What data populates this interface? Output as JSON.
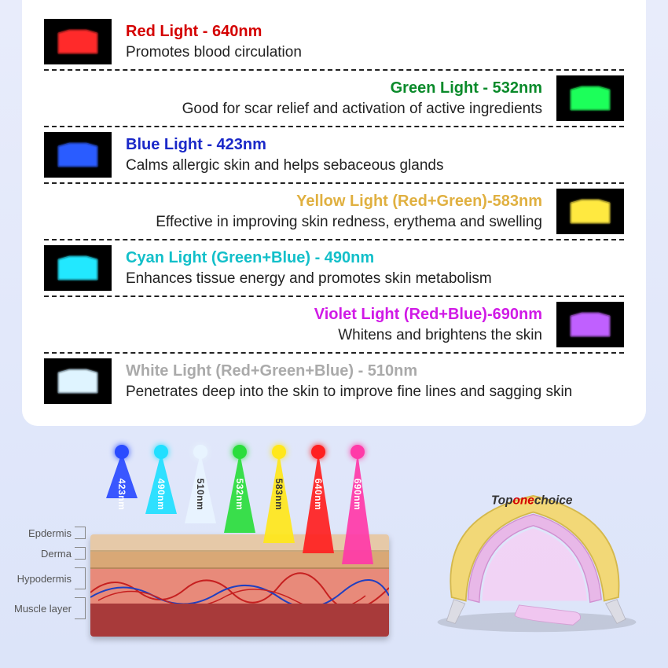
{
  "lights": [
    {
      "title": "Red Light - 640nm",
      "desc": "Promotes blood circulation",
      "align": "left",
      "title_color": "#d40000",
      "led_fill": "#ff2a2a",
      "led_glow": "#ff2a2a",
      "led_bg": "#000"
    },
    {
      "title": "Green Light - 532nm",
      "desc": "Good for scar relief and activation of active ingredients",
      "align": "right",
      "title_color": "#0a8a2a",
      "led_fill": "#1eff5a",
      "led_glow": "#1eff5a",
      "led_bg": "#000"
    },
    {
      "title": "Blue Light - 423nm",
      "desc": "Calms allergic skin and helps sebaceous glands",
      "align": "left",
      "title_color": "#1a28c8",
      "led_fill": "#2a5cff",
      "led_glow": "#2a5cff",
      "led_bg": "#000"
    },
    {
      "title": "Yellow Light (Red+Green)-583nm",
      "desc": "Effective in improving skin redness, erythema and swelling",
      "align": "right",
      "title_color": "#e0b040",
      "led_fill": "#ffe940",
      "led_glow": "#ffe940",
      "led_bg": "#000"
    },
    {
      "title": "Cyan Light (Green+Blue) - 490nm",
      "desc": "Enhances tissue energy and promotes skin metabolism",
      "align": "left",
      "title_color": "#12bfc9",
      "led_fill": "#20e8ff",
      "led_glow": "#20e8ff",
      "led_bg": "#000"
    },
    {
      "title": "Violet Light (Red+Blue)-690nm",
      "desc": "Whitens and brightens the skin",
      "align": "right",
      "title_color": "#d01ae6",
      "led_fill": "#c060ff",
      "led_glow": "#d060ff",
      "led_bg": "#000"
    },
    {
      "title": "White Light (Red+Green+Blue) - 510nm",
      "desc": "Penetrates deep into the skin to improve fine lines and sagging skin",
      "align": "left",
      "title_color": "#aaaaaa",
      "led_fill": "#dff4ff",
      "led_glow": "#a0d8ff",
      "led_bg": "#000"
    }
  ],
  "skin_labels": [
    "Epdermis",
    "Derma",
    "Hypodermis",
    "Muscle layer"
  ],
  "beams": [
    {
      "color": "#2a4bff",
      "nm": "423nm",
      "height": 58,
      "dark": false
    },
    {
      "color": "#20dfff",
      "nm": "490nm",
      "height": 78,
      "dark": false
    },
    {
      "color": "#e8f4ff",
      "nm": "510nm",
      "height": 90,
      "dark": true
    },
    {
      "color": "#2add3c",
      "nm": "532nm",
      "height": 102,
      "dark": false
    },
    {
      "color": "#ffe71a",
      "nm": "583nm",
      "height": 115,
      "dark": true
    },
    {
      "color": "#ff2020",
      "nm": "640nm",
      "height": 128,
      "dark": false
    },
    {
      "color": "#ff3aa8",
      "nm": "690nm",
      "height": 142,
      "dark": false
    }
  ],
  "device": {
    "brand_prefix": "Top",
    "brand_accent": "one",
    "brand_suffix": "choice",
    "shell_color": "#f2d877",
    "inner_color": "#e8b8e8"
  }
}
